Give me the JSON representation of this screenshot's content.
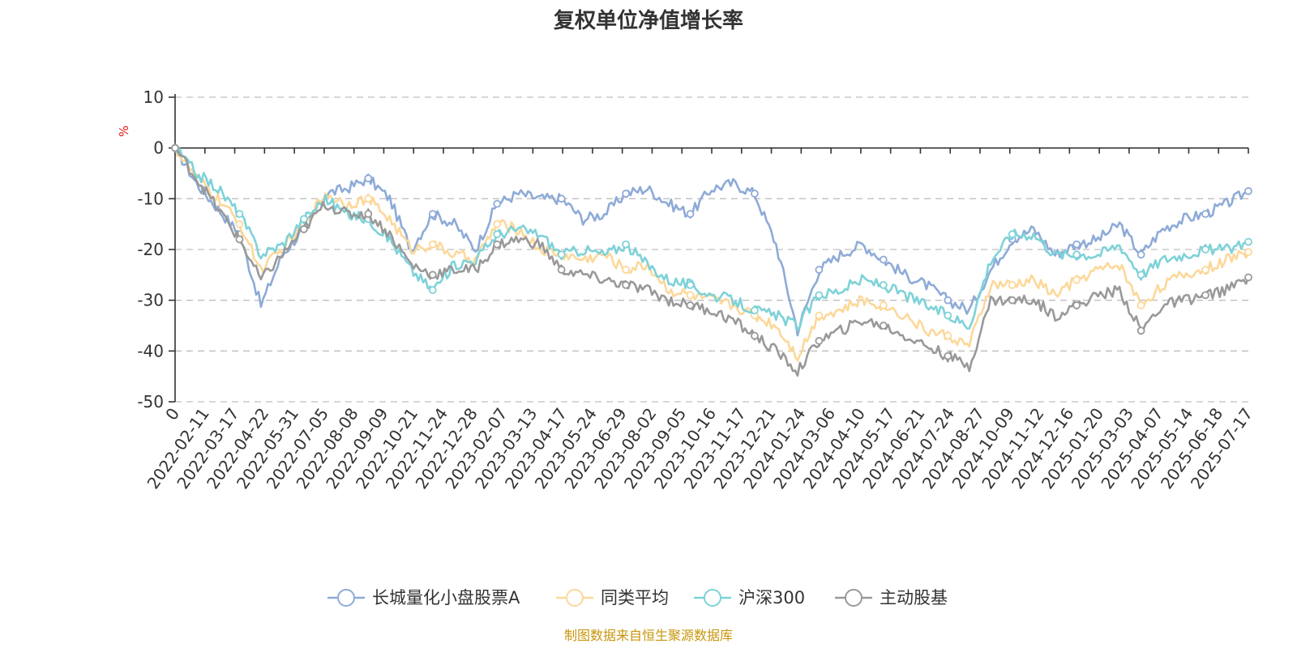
{
  "chart_data": {
    "type": "line",
    "title": "复权单位净值增长率",
    "ylabel": "%",
    "ylim": [
      -50,
      10
    ],
    "yticks": [
      10,
      0,
      -10,
      -20,
      -30,
      -40,
      -50
    ],
    "x_tick_labels": [
      "0",
      "2022-02-11",
      "2022-03-17",
      "2022-04-22",
      "2022-05-31",
      "2022-07-05",
      "2022-08-08",
      "2022-09-09",
      "2022-10-21",
      "2022-11-24",
      "2022-12-28",
      "2023-02-07",
      "2023-03-13",
      "2023-04-17",
      "2023-05-24",
      "2023-06-29",
      "2023-08-02",
      "2023-09-05",
      "2023-10-16",
      "2023-11-17",
      "2023-12-21",
      "2024-01-24",
      "2024-03-06",
      "2024-04-10",
      "2024-05-17",
      "2024-06-21",
      "2024-07-24",
      "2024-08-27",
      "2024-10-09",
      "2024-11-12",
      "2024-12-16",
      "2025-01-20",
      "2025-03-03",
      "2025-04-07",
      "2025-05-14",
      "2025-06-18",
      "2025-07-17"
    ],
    "grid": true,
    "legend_position": "bottom",
    "series": [
      {
        "name": "长城量化小盘股票A",
        "color": "#8eabd7",
        "values": [
          0,
          -7,
          -12,
          -17,
          -31,
          -21,
          -16,
          -9,
          -8,
          -6,
          -10,
          -20,
          -13,
          -15,
          -20,
          -11,
          -9,
          -10,
          -10,
          -14,
          -13,
          -9,
          -8,
          -11,
          -13,
          -8,
          -7,
          -9,
          -19,
          -36,
          -24,
          -21,
          -19,
          -22,
          -25,
          -27,
          -30,
          -32,
          -24,
          -18,
          -16,
          -21,
          -19,
          -18,
          -15,
          -21,
          -16,
          -14,
          -13,
          -11,
          -8.5
        ]
      },
      {
        "name": "同类平均",
        "color": "#fcd89a",
        "values": [
          0,
          -6,
          -10,
          -15,
          -24,
          -20,
          -15,
          -9,
          -11,
          -10,
          -14,
          -20,
          -19,
          -21,
          -22,
          -15,
          -16,
          -20,
          -21,
          -22,
          -21,
          -24,
          -23,
          -28,
          -29,
          -30,
          -31,
          -33,
          -35,
          -41,
          -33,
          -32,
          -30,
          -31,
          -33,
          -36,
          -37,
          -39,
          -27,
          -27,
          -26,
          -29,
          -26,
          -24,
          -23,
          -31,
          -27,
          -25,
          -24,
          -22,
          -20.5
        ]
      },
      {
        "name": "沪深300",
        "color": "#7ed2d8",
        "values": [
          0,
          -5,
          -8,
          -13,
          -21,
          -19,
          -14,
          -10,
          -13,
          -14,
          -18,
          -24,
          -28,
          -23,
          -22,
          -17,
          -16,
          -17,
          -21,
          -20,
          -21,
          -19,
          -23,
          -26,
          -27,
          -29,
          -30,
          -32,
          -33,
          -35,
          -29,
          -28,
          -26,
          -27,
          -29,
          -31,
          -33,
          -35,
          -22,
          -17,
          -17,
          -21,
          -21,
          -21,
          -19,
          -25,
          -22,
          -21,
          -20,
          -20,
          -18.5
        ]
      },
      {
        "name": "主动股基",
        "color": "#999999",
        "values": [
          0,
          -6,
          -12,
          -18,
          -26,
          -21,
          -16,
          -11,
          -13,
          -13,
          -17,
          -23,
          -25,
          -24,
          -24,
          -19,
          -18,
          -19,
          -24,
          -25,
          -26,
          -27,
          -28,
          -30,
          -31,
          -32,
          -34,
          -37,
          -40,
          -44,
          -38,
          -36,
          -34,
          -35,
          -37,
          -39,
          -41,
          -43,
          -30,
          -30,
          -30,
          -33,
          -31,
          -29,
          -28,
          -36,
          -31,
          -30,
          -29,
          -28,
          -25.5
        ]
      }
    ]
  },
  "footer": {
    "source": "制图数据来自恒生聚源数据库"
  }
}
